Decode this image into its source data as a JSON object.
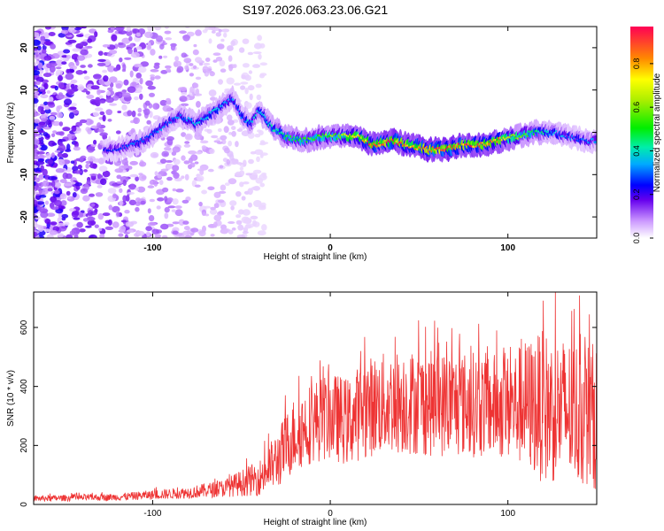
{
  "title": "S197.2026.063.23.06.G21",
  "chart_data": [
    {
      "type": "heatmap",
      "xlabel": "Height of straight line (km)",
      "ylabel": "Frequency (Hz)",
      "xlim": [
        -167,
        150
      ],
      "ylim": [
        -25,
        25
      ],
      "xticks": [
        -100,
        0,
        100
      ],
      "yticks": [
        -20,
        -10,
        0,
        10,
        20
      ],
      "colorbar": {
        "label": "Normalized spectral amplitude",
        "range": [
          0,
          0.97
        ],
        "ticks": [
          0.0,
          0.2,
          0.4,
          0.6,
          0.8
        ]
      },
      "ridge": [
        {
          "x": -120,
          "y": -4,
          "amp": 0.25
        },
        {
          "x": -105,
          "y": -2,
          "amp": 0.3
        },
        {
          "x": -95,
          "y": 1,
          "amp": 0.3
        },
        {
          "x": -85,
          "y": 4,
          "amp": 0.3
        },
        {
          "x": -75,
          "y": 2,
          "amp": 0.35
        },
        {
          "x": -65,
          "y": 5,
          "amp": 0.35
        },
        {
          "x": -55,
          "y": 8,
          "amp": 0.3
        },
        {
          "x": -50,
          "y": 4,
          "amp": 0.3
        },
        {
          "x": -45,
          "y": 2,
          "amp": 0.35
        },
        {
          "x": -40,
          "y": 5,
          "amp": 0.35
        },
        {
          "x": -32,
          "y": 1,
          "amp": 0.4
        },
        {
          "x": -25,
          "y": -1,
          "amp": 0.45
        },
        {
          "x": -15,
          "y": -2,
          "amp": 0.5
        },
        {
          "x": -5,
          "y": -1,
          "amp": 0.55
        },
        {
          "x": 5,
          "y": -1,
          "amp": 0.6
        },
        {
          "x": 15,
          "y": -1,
          "amp": 0.75
        },
        {
          "x": 25,
          "y": -3,
          "amp": 0.85
        },
        {
          "x": 35,
          "y": -2,
          "amp": 0.9
        },
        {
          "x": 45,
          "y": -3,
          "amp": 0.8
        },
        {
          "x": 55,
          "y": -4,
          "amp": 0.9
        },
        {
          "x": 65,
          "y": -4,
          "amp": 0.95
        },
        {
          "x": 75,
          "y": -3,
          "amp": 0.85
        },
        {
          "x": 85,
          "y": -3,
          "amp": 0.85
        },
        {
          "x": 95,
          "y": -2,
          "amp": 0.8
        },
        {
          "x": 105,
          "y": -1,
          "amp": 0.6
        },
        {
          "x": 115,
          "y": 0,
          "amp": 0.45
        },
        {
          "x": 125,
          "y": 0,
          "amp": 0.35
        },
        {
          "x": 135,
          "y": -1,
          "amp": 0.3
        },
        {
          "x": 145,
          "y": -2,
          "amp": 0.3
        }
      ]
    },
    {
      "type": "line",
      "xlabel": "Height of straight line (km)",
      "ylabel": "SNR (10 * v/v)",
      "xlim": [
        -167,
        150
      ],
      "ylim": [
        0,
        720
      ],
      "xticks": [
        -100,
        0,
        100
      ],
      "yticks": [
        0,
        200,
        400,
        600
      ],
      "color": "#ee3333",
      "envelope": {
        "x": [
          -167,
          -120,
          -80,
          -60,
          -40,
          -30,
          -20,
          -10,
          0,
          10,
          20,
          40,
          60,
          80,
          100,
          110,
          120,
          130,
          140,
          150
        ],
        "mean": [
          20,
          25,
          40,
          55,
          90,
          150,
          240,
          280,
          300,
          280,
          330,
          350,
          340,
          340,
          330,
          340,
          330,
          320,
          310,
          300
        ],
        "spread": [
          10,
          12,
          20,
          30,
          60,
          100,
          130,
          140,
          150,
          150,
          170,
          180,
          180,
          180,
          180,
          220,
          260,
          250,
          250,
          250
        ]
      }
    }
  ]
}
